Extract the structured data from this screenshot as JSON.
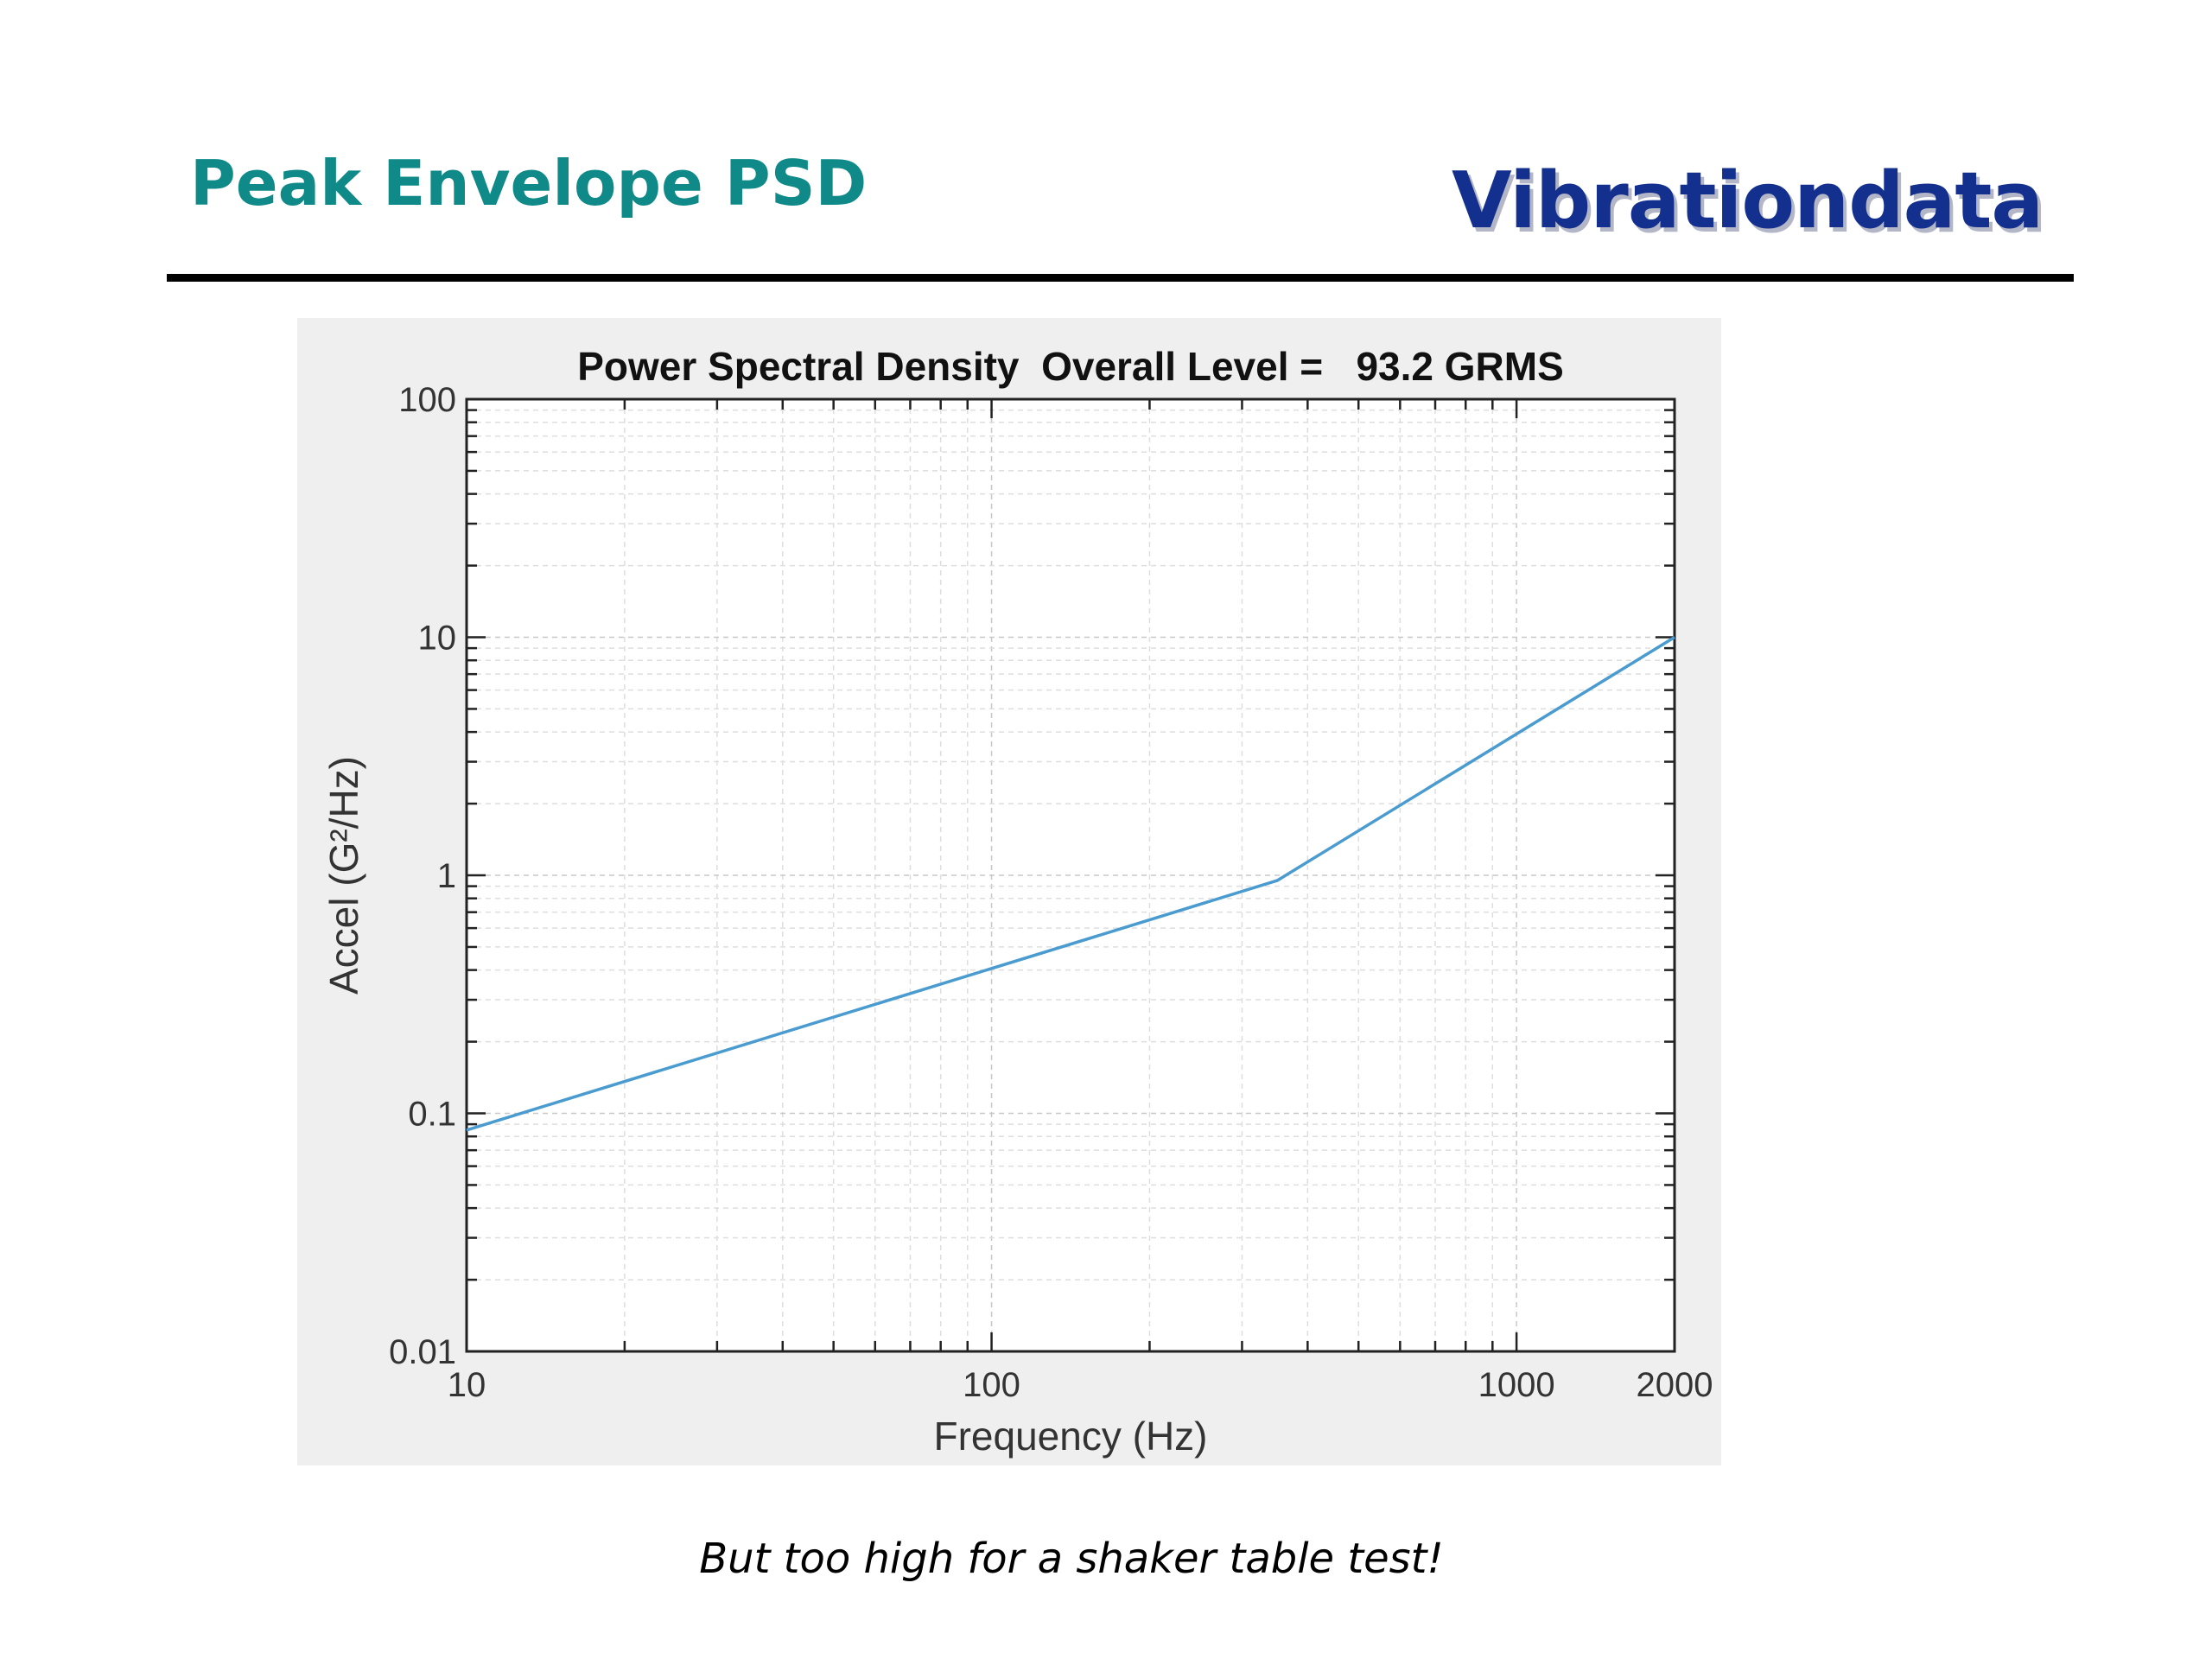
{
  "slide": {
    "title": "Peak Envelope PSD",
    "logo_text": "Vibrationdata",
    "caption": "But too high for a shaker table test!",
    "colors": {
      "title": "#0f8a88",
      "logo": "#14308f"
    }
  },
  "chart_data": {
    "type": "line",
    "title": "Power Spectral Density  Overall Level =   93.2 GRMS",
    "xlabel": "Frequency (Hz)",
    "ylabel": "Accel (G²/Hz)",
    "xscale": "log",
    "yscale": "log",
    "xlim": [
      10,
      2000
    ],
    "ylim": [
      0.01,
      100
    ],
    "xticks": [
      10,
      100,
      1000,
      2000
    ],
    "xtick_labels": [
      "10",
      "100",
      "1000",
      "2000"
    ],
    "yticks": [
      0.01,
      0.1,
      1,
      10,
      100
    ],
    "ytick_labels": [
      "0.01",
      "0.1",
      "1",
      "10",
      "100"
    ],
    "grid": true,
    "series": [
      {
        "x": [
          10,
          350,
          2000
        ],
        "y": [
          0.085,
          0.95,
          10
        ],
        "color": "#4a9bd0"
      }
    ]
  }
}
